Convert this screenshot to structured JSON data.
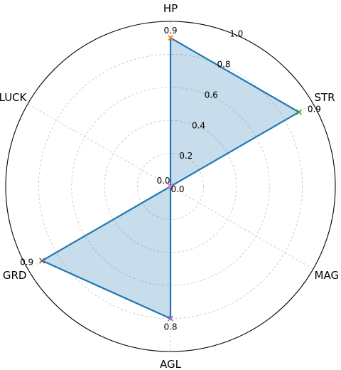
{
  "chart_data": {
    "type": "radar",
    "categories": [
      "HP",
      "STR",
      "MAG",
      "AGL",
      "GRD",
      "LUCK"
    ],
    "values": [
      0.9,
      0.9,
      0.0,
      0.8,
      0.9,
      0.0
    ],
    "value_labels": [
      "0.9",
      "0.9",
      "0.0",
      "0.8",
      "0.9",
      "0.0"
    ],
    "rlim": [
      0,
      1.0
    ],
    "radial_ticks": [
      0.2,
      0.4,
      0.6,
      0.8,
      1.0
    ],
    "radial_tick_labels": [
      "0.2",
      "0.4",
      "0.6",
      "0.8",
      "1.0"
    ],
    "grid": true,
    "colors": {
      "series": "#1f77b4",
      "markers": [
        "#ff7f0e",
        "#2ca02c",
        "#d62728",
        "#9467bd",
        "#8c564b",
        "#e377c2"
      ]
    }
  }
}
